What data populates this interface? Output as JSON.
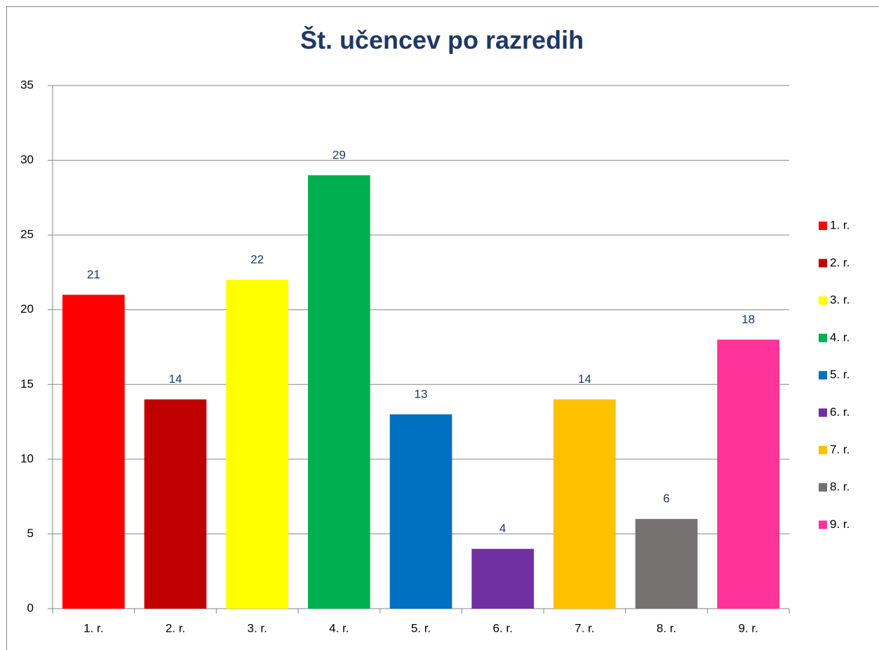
{
  "chart_data": {
    "type": "bar",
    "title": "Št. učencev po razredih",
    "categories": [
      "1. r.",
      "2. r.",
      "3. r.",
      "4. r.",
      "5. r.",
      "6. r.",
      "7. r.",
      "8. r.",
      "9. r."
    ],
    "values": [
      21,
      14,
      22,
      29,
      13,
      4,
      14,
      6,
      18
    ],
    "colors": [
      "#ff0000",
      "#c00000",
      "#ffff00",
      "#00b050",
      "#0070c0",
      "#7030a0",
      "#ffc000",
      "#767171",
      "#ff3399"
    ],
    "ylim": [
      0,
      35
    ],
    "yticks": [
      0,
      5,
      10,
      15,
      20,
      25,
      30,
      35
    ],
    "grid": true,
    "legend": "right"
  }
}
